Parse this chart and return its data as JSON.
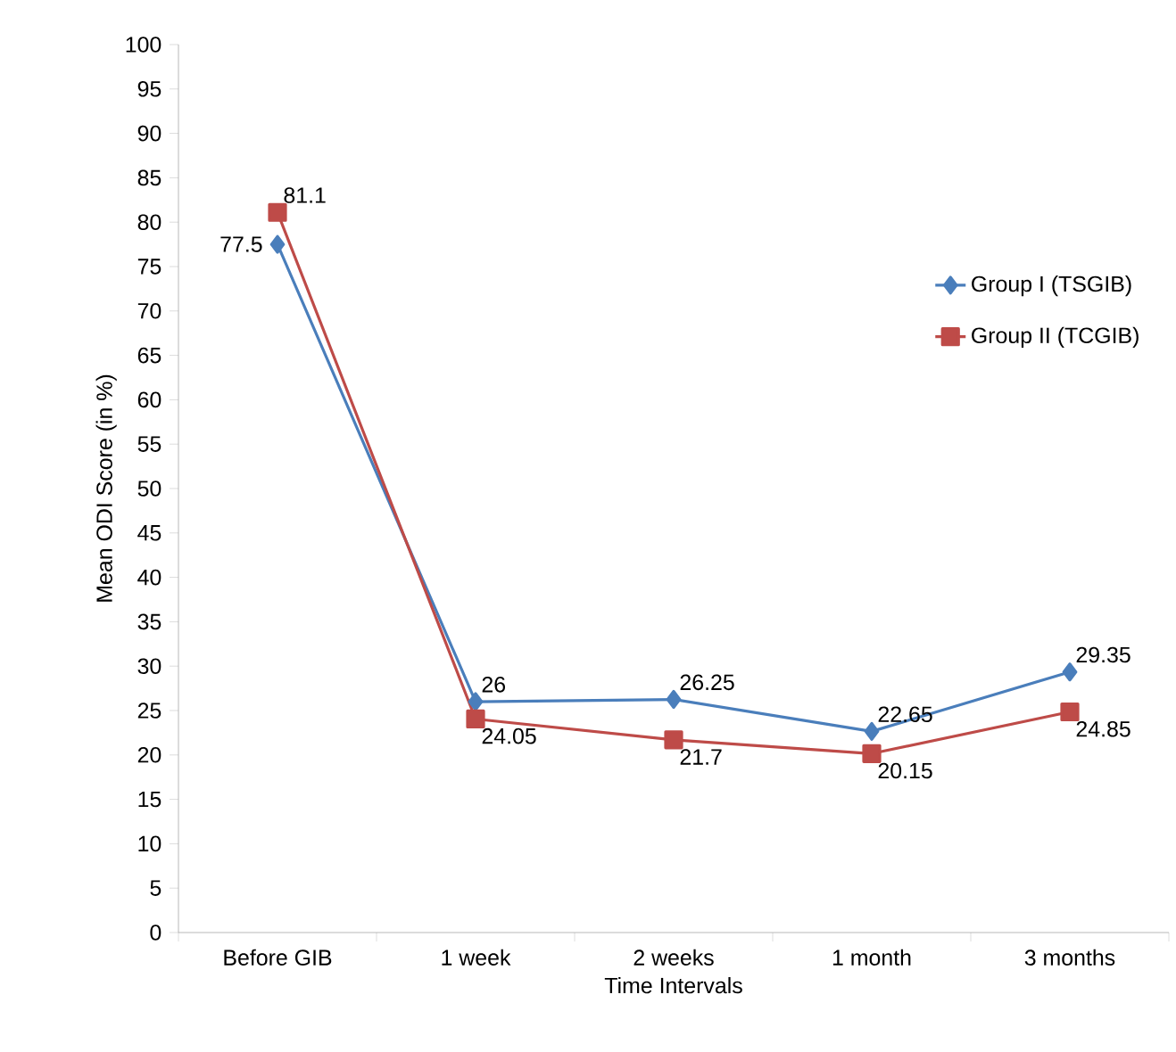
{
  "chart_data": {
    "type": "line",
    "xlabel": "Time Intervals",
    "ylabel": "Mean ODI Score (in %)",
    "categories": [
      "Before GIB",
      "1 week",
      "2 weeks",
      "1 month",
      "3 months"
    ],
    "series": [
      {
        "name": "Group I (TSGIB)",
        "color": "#4a7ebb",
        "marker": "diamond",
        "values": [
          77.5,
          26,
          26.25,
          22.65,
          29.35
        ]
      },
      {
        "name": "Group II (TCGIB)",
        "color": "#be4b48",
        "marker": "square",
        "values": [
          81.1,
          24.05,
          21.7,
          20.15,
          24.85
        ]
      }
    ],
    "ylim": [
      0,
      100
    ],
    "yticks": [
      0,
      5,
      10,
      15,
      20,
      25,
      30,
      35,
      40,
      45,
      50,
      55,
      60,
      65,
      70,
      75,
      80,
      85,
      90,
      95,
      100
    ],
    "grid": false,
    "legend": "right",
    "data_labels": true
  }
}
